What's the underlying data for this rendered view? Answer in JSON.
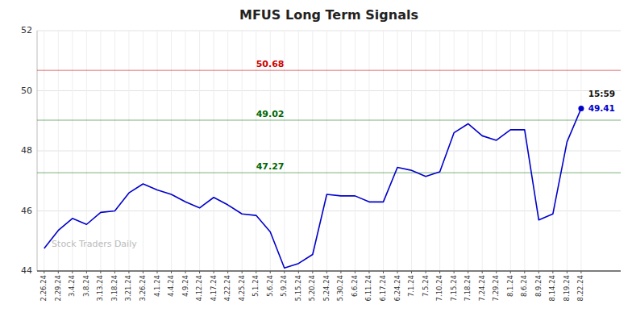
{
  "chart_data": {
    "type": "line",
    "title": "MFUS Long Term Signals",
    "watermark": "Stock Traders Daily",
    "categories": [
      "2.26.24",
      "2.29.24",
      "3.4.24",
      "3.8.24",
      "3.13.24",
      "3.18.24",
      "3.21.24",
      "3.26.24",
      "4.1.24",
      "4.4.24",
      "4.9.24",
      "4.12.24",
      "4.17.24",
      "4.22.24",
      "4.25.24",
      "5.1.24",
      "5.6.24",
      "5.9.24",
      "5.15.24",
      "5.20.24",
      "5.24.24",
      "5.30.24",
      "6.6.24",
      "6.11.24",
      "6.17.24",
      "6.24.24",
      "7.1.24",
      "7.5.24",
      "7.10.24",
      "7.15.24",
      "7.18.24",
      "7.24.24",
      "7.29.24",
      "8.1.24",
      "8.6.24",
      "8.9.24",
      "8.14.24",
      "8.19.24",
      "8.22.24"
    ],
    "values": [
      44.75,
      45.35,
      45.75,
      45.55,
      45.95,
      46.0,
      46.6,
      46.9,
      46.7,
      46.55,
      46.3,
      46.1,
      46.45,
      46.2,
      45.9,
      45.85,
      45.3,
      44.1,
      44.25,
      44.55,
      46.55,
      46.5,
      46.5,
      46.3,
      46.3,
      47.45,
      47.35,
      47.15,
      47.3,
      48.6,
      48.9,
      48.5,
      48.35,
      48.7,
      48.7,
      45.7,
      45.9,
      48.3,
      49.41
    ],
    "color": "#0000cc",
    "ylim": [
      44,
      52
    ],
    "yticks": [
      44,
      46,
      48,
      50,
      52
    ],
    "grid": true,
    "reference_lines": [
      {
        "value": 50.68,
        "label": "50.68",
        "color": "#cc0000"
      },
      {
        "value": 49.02,
        "label": "49.02",
        "color": "#006600"
      },
      {
        "value": 47.27,
        "label": "47.27",
        "color": "#006600"
      }
    ],
    "annotations": [
      {
        "text": "15:59"
      },
      {
        "text": "49.41"
      }
    ]
  }
}
